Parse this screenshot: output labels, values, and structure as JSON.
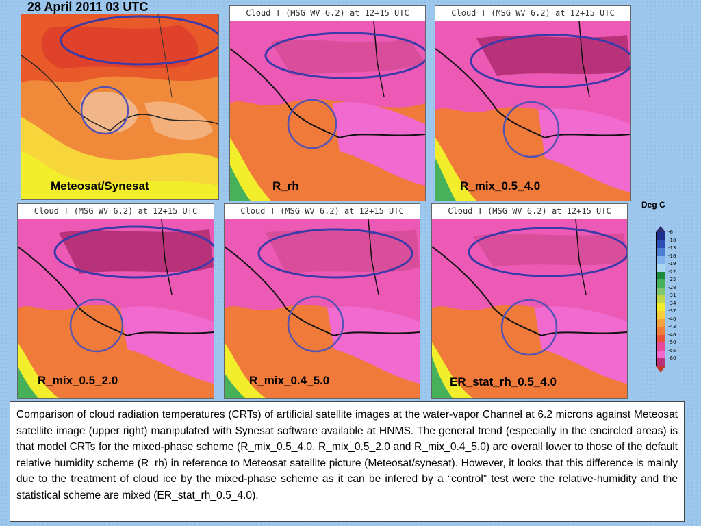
{
  "title": "28  April 2011 03 UTC",
  "panel_header": "Cloud T (MSG WV 6.2) at 12+15 UTC",
  "panels": [
    {
      "label": "Meteosat/Synesat"
    },
    {
      "label": "R_rh"
    },
    {
      "label": "R_mix_0.5_4.0"
    },
    {
      "label": "R_mix_0.5_2.0"
    },
    {
      "label": "R_mix_0.4_5.0"
    },
    {
      "label": "ER_stat_rh_0.5_4.0"
    }
  ],
  "colorbar": {
    "title": "Deg C",
    "levels": [
      "-6",
      "-10",
      "-13",
      "-16",
      "-19",
      "-22",
      "-25",
      "-28",
      "-31",
      "-34",
      "-37",
      "-40",
      "-43",
      "-46",
      "-50",
      "-55",
      "-60"
    ],
    "colors": [
      "#1f2d8c",
      "#2c4fb5",
      "#4a7fd4",
      "#7fb2ec",
      "#aad8f2",
      "#1c8c3c",
      "#46b05a",
      "#7fc66e",
      "#c2d64a",
      "#f2ee2c",
      "#f7cf3a",
      "#f2a040",
      "#ef7d3a",
      "#e8503a",
      "#e64a9a",
      "#f06acf",
      "#b8327a"
    ]
  },
  "caption": "Comparison of cloud radiation temperatures (CRTs)  of artificial satellite images at the water-vapor Channel at 6.2 microns against Meteosat satellite image (upper right) manipulated with Synesat software available at HNMS. The general trend (especially in the encircled areas) is that  model CRTs for the mixed-phase scheme (R_mix_0.5_4.0, R_mix_0.5_2.0 and R_mix_0.4_5.0) are overall  lower to those of the default relative humidity scheme (R_rh) in reference to Meteosat satellite picture (Meteosat/synesat). However,  it looks that this difference is mainly due to the treatment of cloud ice by the mixed-phase scheme as it can be infered by a “control”  test were the relative-humidity and the statistical scheme are mixed (ER_stat_rh_0.5_4.0)."
}
